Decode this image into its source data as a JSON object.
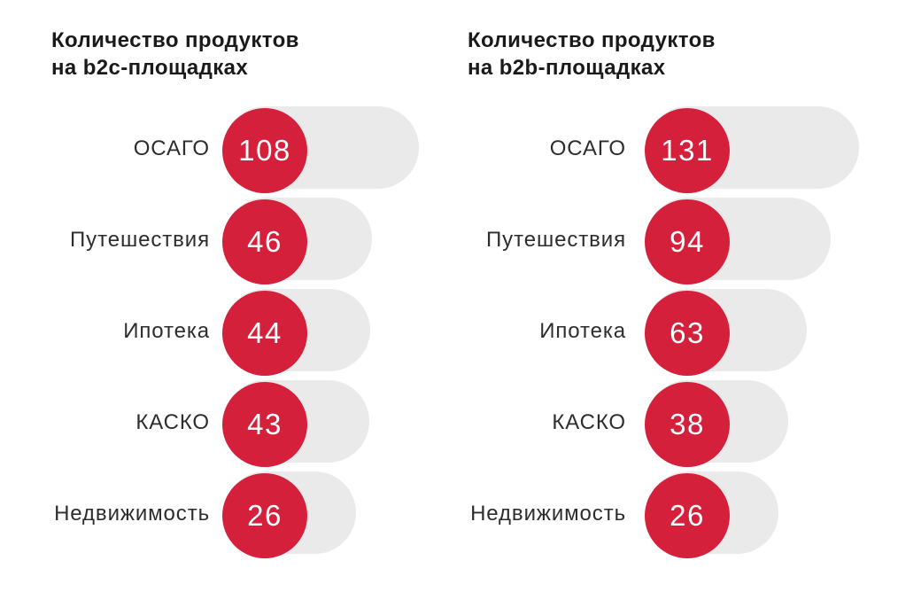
{
  "colors": {
    "accent_red": "#d5203b",
    "bar_grey": "#eaeaea",
    "title_text": "#1a1a1a",
    "label_text": "#2d2d2d",
    "value_text": "#ffffff",
    "page_background": "#ffffff"
  },
  "chart_data": [
    {
      "type": "bar",
      "orientation": "horizontal",
      "title": "Количество продуктов на b2c-площадках",
      "title_lines": [
        "Количество продуктов",
        "на b2c-площадках"
      ],
      "categories": [
        "ОСАГО",
        "Путешествия",
        "Ипотека",
        "КАСКО",
        "Недвижимость"
      ],
      "values": [
        108,
        46,
        44,
        43,
        26
      ],
      "value_labels": [
        "108",
        "46",
        "44",
        "43",
        "26"
      ],
      "xlabel": "",
      "ylabel": "",
      "grid": false,
      "legend": "none",
      "value_label_position": "inside-circle-at-bar-start"
    },
    {
      "type": "bar",
      "orientation": "horizontal",
      "title": "Количество продуктов на b2b-площадках",
      "title_lines": [
        "Количество продуктов",
        "на b2b-площадках"
      ],
      "categories": [
        "ОСАГО",
        "Путешествия",
        "Ипотека",
        "КАСКО",
        "Недвижимость"
      ],
      "values": [
        131,
        94,
        63,
        38,
        26
      ],
      "value_labels": [
        "131",
        "94",
        "63",
        "38",
        "26"
      ],
      "xlabel": "",
      "ylabel": "",
      "grid": false,
      "legend": "none",
      "value_label_position": "inside-circle-at-bar-start"
    }
  ]
}
